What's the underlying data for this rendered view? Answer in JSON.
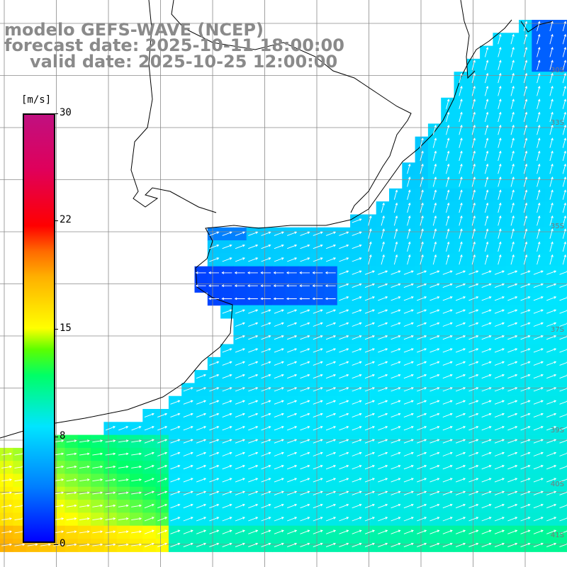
{
  "title": {
    "line1": "modelo GEFS-WAVE (NCEP)",
    "line2": "forecast date: 2025-10-11 18:00:00",
    "line3": "valid date: 2025-10-25 12:00:00"
  },
  "colorbar": {
    "unit": "[m/s]",
    "ticks": [
      "30",
      "22",
      "15",
      "8",
      "0"
    ],
    "tick_values": [
      30,
      22,
      15,
      8,
      0
    ],
    "range": [
      0,
      30
    ]
  },
  "map": {
    "lat_labels": [
      "30S",
      "33S",
      "35S",
      "37S",
      "39S",
      "40S",
      "41S"
    ],
    "colors": {
      "land": "#ffffff",
      "grid": "#8a8a8a",
      "coast": "#000000",
      "arrow": "#ffffff"
    }
  }
}
